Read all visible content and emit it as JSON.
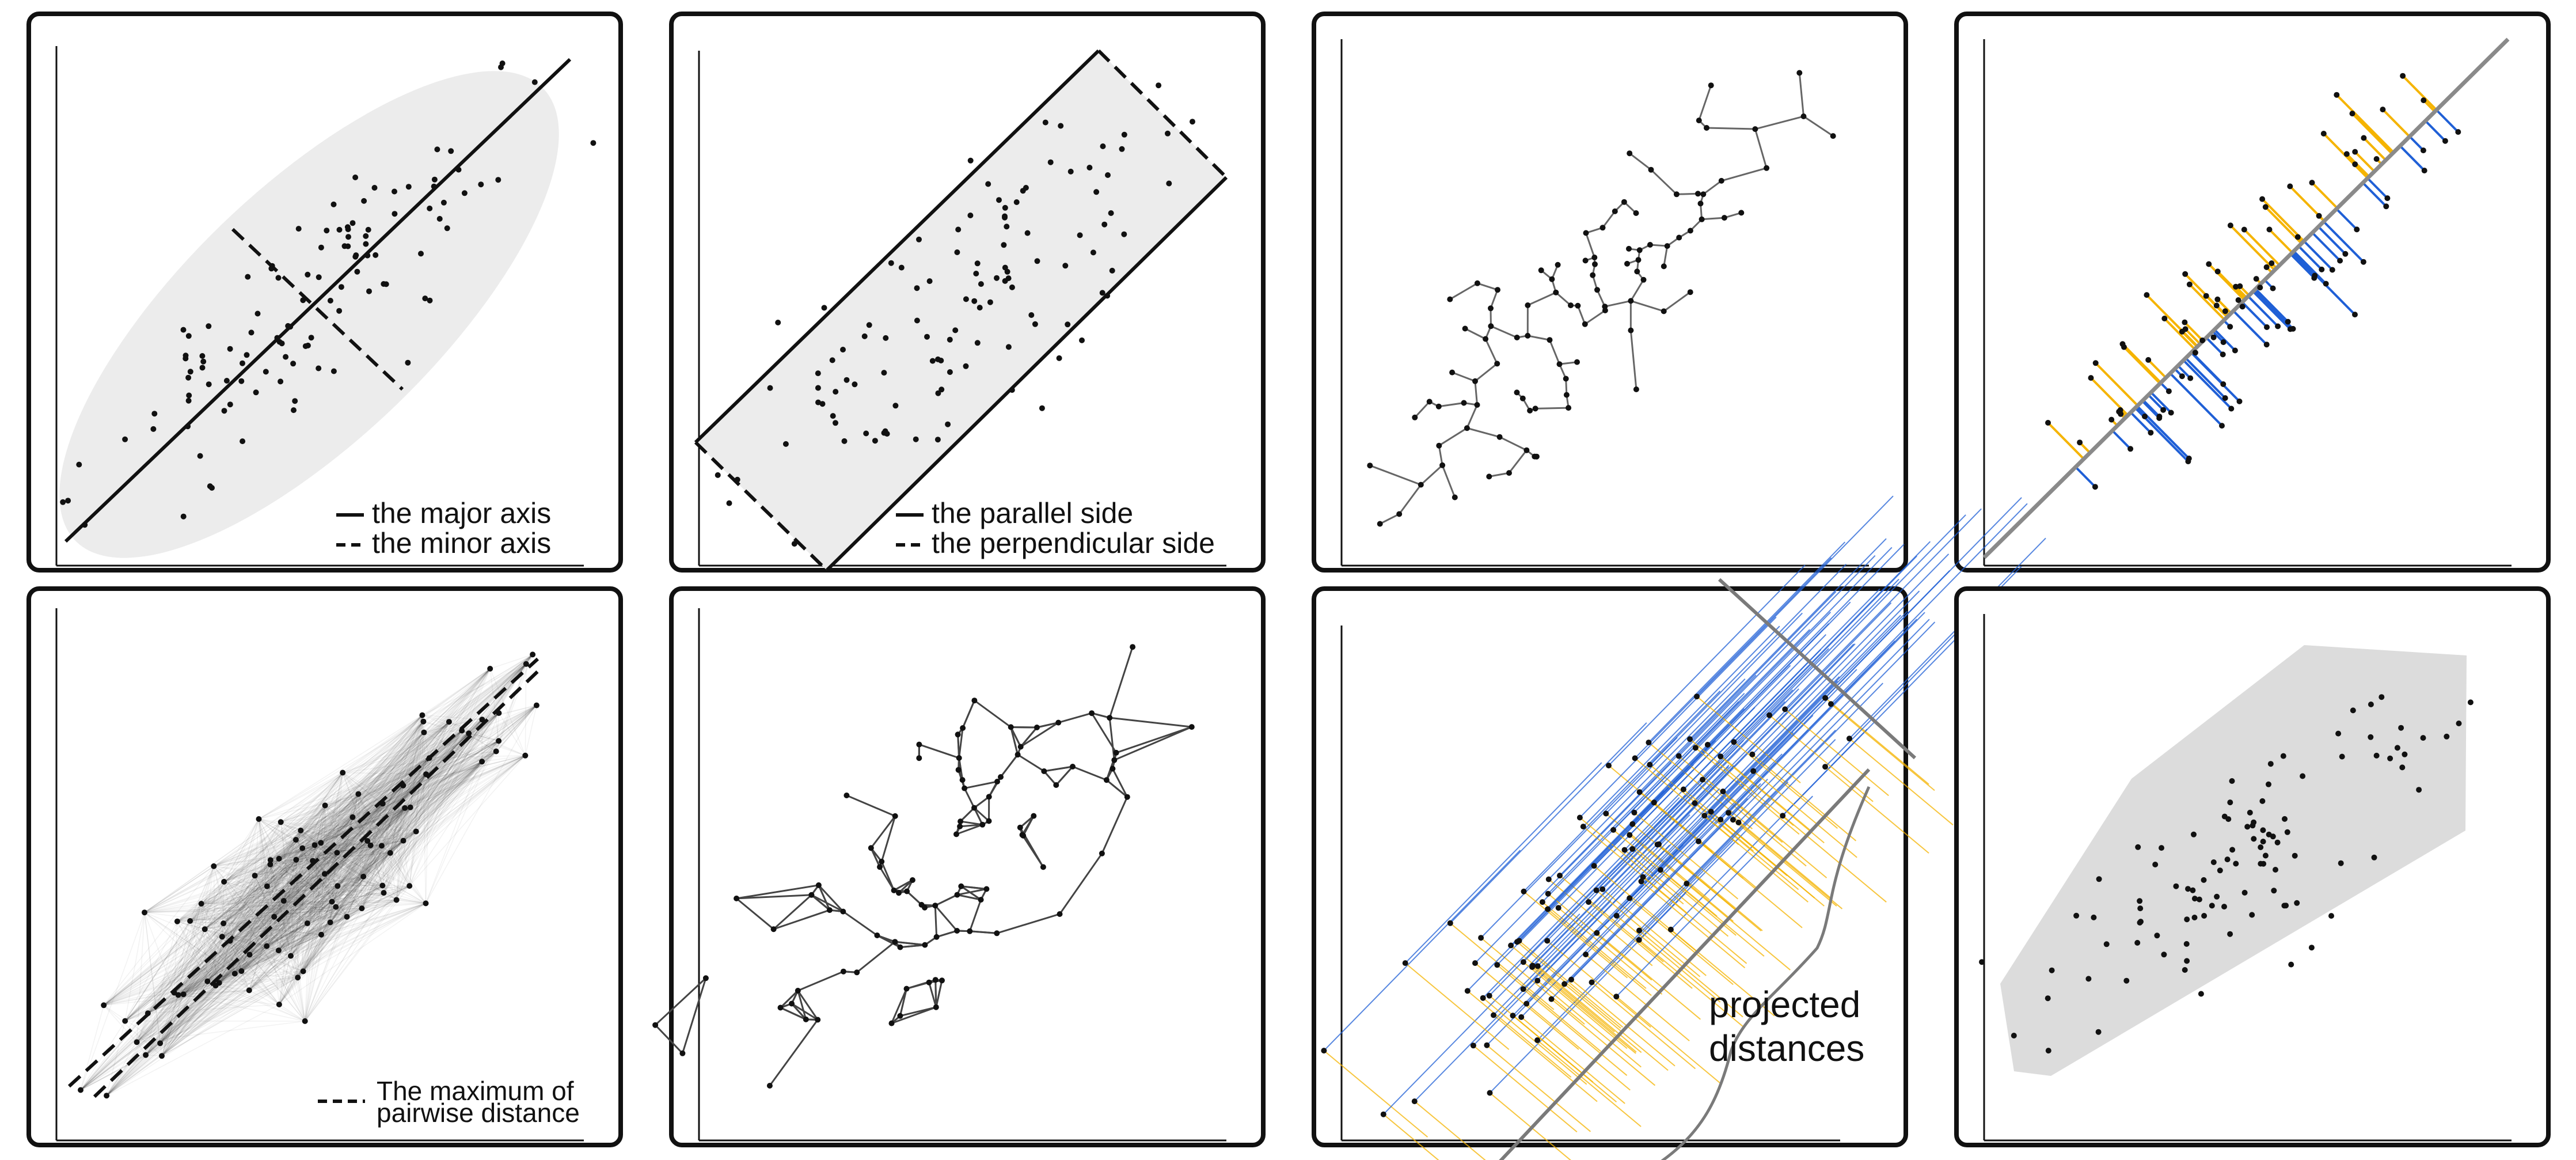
{
  "panels": [
    {
      "id": "major-minor-axis",
      "legend": {
        "solid": "the major axis",
        "dashed": "the minor axis"
      }
    },
    {
      "id": "parallel-perpendicular",
      "legend": {
        "solid": "the parallel side",
        "dashed": "the perpendicular side"
      }
    },
    {
      "id": "minimum-spanning-tree"
    },
    {
      "id": "diagonal-residuals"
    },
    {
      "id": "pairwise-distance",
      "legend": {
        "dashed_line1": "The maximum of",
        "dashed_line2": "pairwise distance"
      }
    },
    {
      "id": "neighbor-graph"
    },
    {
      "id": "projections",
      "callout": {
        "line1": "projected",
        "line2": "distances"
      }
    },
    {
      "id": "convex-hull"
    }
  ],
  "colors": {
    "ink": "#111111",
    "shade": "#ececec",
    "hull": "#dcdcdc",
    "orange": "#f5b400",
    "blue": "#1f5fd6",
    "gray_line": "#7a7a7a"
  }
}
